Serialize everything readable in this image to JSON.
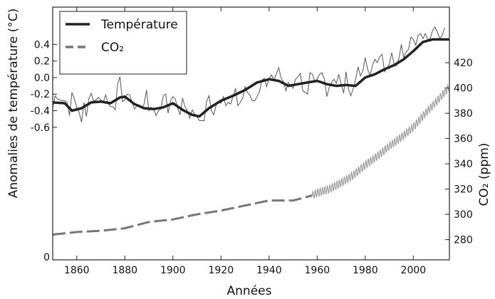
{
  "chart_data": {
    "type": "line",
    "xlabel": "Années",
    "ylabel_left": "Anomalies de température (°C)",
    "ylabel_right": "CO₂ (ppm)",
    "xlim": [
      1850,
      2015
    ],
    "ylim_left": [
      -2.2,
      0.85
    ],
    "ylim_right": [
      264,
      464
    ],
    "x_ticks": [
      1860,
      1880,
      1900,
      1920,
      1940,
      1960,
      1980,
      2000
    ],
    "y_left_ticks": [
      0.4,
      0.2,
      0.0,
      -0.2,
      -0.4,
      -0.6
    ],
    "y_left_tick_labels": [
      "0.4",
      "0.2",
      "0.0",
      "-0.2",
      "-0.4",
      "-0.6"
    ],
    "y_left_bottom_label": "0",
    "y_right_ticks": [
      420,
      400,
      380,
      360,
      340,
      320,
      300,
      280
    ],
    "legend_position": "top-left",
    "grid": false,
    "series": [
      {
        "name": "Température",
        "axis": "left",
        "style": "solid",
        "color": "#222222",
        "smoothed": {
          "x": [
            1850,
            1855,
            1858,
            1862,
            1866,
            1870,
            1874,
            1878,
            1880,
            1884,
            1888,
            1892,
            1896,
            1900,
            1904,
            1908,
            1911,
            1915,
            1920,
            1925,
            1930,
            1935,
            1940,
            1944,
            1948,
            1952,
            1956,
            1960,
            1964,
            1968,
            1972,
            1976,
            1980,
            1984,
            1988,
            1992,
            1996,
            2000,
            2004,
            2008,
            2012,
            2015
          ],
          "y": [
            -0.3,
            -0.31,
            -0.4,
            -0.37,
            -0.3,
            -0.29,
            -0.31,
            -0.24,
            -0.23,
            -0.32,
            -0.37,
            -0.38,
            -0.36,
            -0.31,
            -0.39,
            -0.45,
            -0.47,
            -0.37,
            -0.28,
            -0.22,
            -0.15,
            -0.06,
            -0.02,
            -0.04,
            -0.1,
            -0.08,
            -0.06,
            -0.04,
            -0.08,
            -0.1,
            -0.09,
            -0.1,
            0.0,
            0.04,
            0.1,
            0.15,
            0.22,
            0.32,
            0.43,
            0.46,
            0.46,
            0.46
          ]
        },
        "annual": {
          "start_year": 1850,
          "values": [
            -0.37,
            -0.22,
            -0.26,
            -0.27,
            -0.28,
            -0.28,
            -0.3,
            -0.46,
            -0.18,
            -0.26,
            -0.36,
            -0.42,
            -0.54,
            -0.3,
            -0.47,
            -0.26,
            -0.19,
            -0.28,
            -0.27,
            -0.24,
            -0.27,
            -0.3,
            -0.21,
            -0.31,
            -0.35,
            -0.35,
            -0.39,
            -0.08,
            0.01,
            -0.29,
            -0.27,
            -0.2,
            -0.21,
            -0.3,
            -0.38,
            -0.34,
            -0.33,
            -0.37,
            -0.32,
            -0.15,
            -0.4,
            -0.36,
            -0.38,
            -0.46,
            -0.4,
            -0.38,
            -0.22,
            -0.2,
            -0.43,
            -0.28,
            -0.23,
            -0.26,
            -0.37,
            -0.45,
            -0.25,
            -0.35,
            -0.4,
            -0.49,
            -0.39,
            -0.44,
            -0.47,
            -0.52,
            -0.52,
            -0.52,
            -0.29,
            -0.22,
            -0.4,
            -0.45,
            -0.33,
            -0.29,
            -0.31,
            -0.23,
            -0.34,
            -0.3,
            -0.32,
            -0.23,
            -0.13,
            -0.34,
            -0.3,
            -0.25,
            -0.11,
            -0.18,
            -0.21,
            -0.28,
            -0.28,
            -0.23,
            -0.17,
            -0.03,
            -0.01,
            -0.11,
            -0.01,
            0.03,
            -0.03,
            0.04,
            0.12,
            -0.01,
            -0.05,
            -0.16,
            -0.06,
            -0.1,
            -0.13,
            -0.02,
            0.01,
            0.05,
            -0.16,
            -0.18,
            -0.2,
            0.06,
            0.04,
            -0.05,
            -0.02,
            0.04,
            0.06,
            -0.02,
            -0.23,
            -0.12,
            -0.06,
            -0.02,
            -0.07,
            0.04,
            -0.08,
            -0.19,
            0.07,
            -0.14,
            -0.22,
            -0.13,
            -0.02,
            0.13,
            0.02,
            0.08,
            0.24,
            0.1,
            0.02,
            0.15,
            0.22,
            0.18,
            0.25,
            0.28,
            0.07,
            0.11,
            0.16,
            0.3,
            0.16,
            0.14,
            0.23,
            0.4,
            0.24,
            0.31,
            0.34,
            0.49,
            0.46,
            0.39,
            0.51,
            0.53,
            0.47,
            0.53,
            0.46,
            0.47,
            0.57,
            0.61,
            0.55,
            0.47,
            0.51,
            0.6
          ]
        }
      },
      {
        "name": "CO₂",
        "axis": "right",
        "style": "dashed",
        "color": "#777777",
        "core_data": {
          "x": [
            1850,
            1860,
            1870,
            1880,
            1890,
            1900,
            1910,
            1920,
            1930,
            1940,
            1950,
            1958
          ],
          "y": [
            284,
            286,
            287,
            289,
            294,
            296,
            300,
            303,
            307,
            311,
            311,
            315
          ]
        },
        "observed": {
          "note_x_start": 1958,
          "x": [
            1958,
            1960,
            1965,
            1970,
            1975,
            1980,
            1985,
            1990,
            1995,
            2000,
            2005,
            2010,
            2015
          ],
          "y": [
            315,
            317,
            320,
            325,
            331,
            339,
            346,
            354,
            361,
            369,
            380,
            390,
            401
          ]
        }
      }
    ]
  }
}
